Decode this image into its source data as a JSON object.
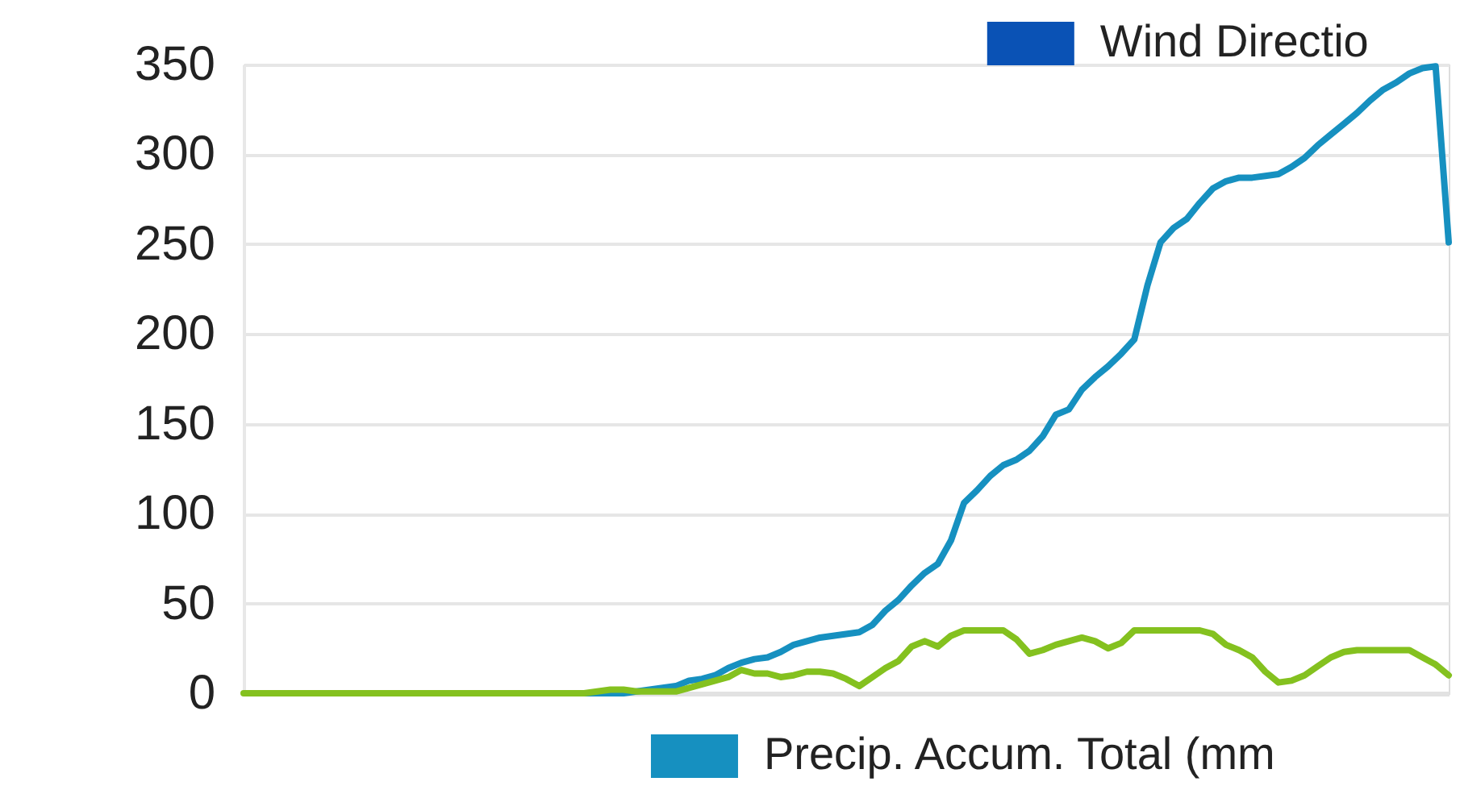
{
  "chart_data": {
    "type": "line",
    "legend": "bottom",
    "grid": "y",
    "tick_labels": "y",
    "line_style": "solid",
    "categories": [
      null,
      null,
      null,
      null,
      null,
      null,
      null,
      null,
      null,
      null,
      null,
      null,
      null,
      null,
      null,
      null,
      null,
      null,
      null,
      null,
      null,
      null,
      null,
      null,
      null,
      null,
      null,
      null,
      null,
      null,
      null,
      null,
      null,
      null,
      null,
      null,
      null,
      null,
      null,
      null,
      null,
      null,
      null,
      null,
      null,
      null,
      null,
      null,
      null,
      null,
      null,
      null,
      null,
      null,
      null,
      null,
      null,
      null,
      null,
      null,
      null,
      null,
      null,
      null,
      null,
      null,
      null,
      null,
      null,
      null,
      null,
      null,
      null,
      null,
      null,
      null,
      null,
      null,
      null,
      null,
      null,
      null,
      null,
      null,
      null,
      null,
      null,
      null,
      null,
      null,
      null,
      null,
      null
    ],
    "ylim": [
      0,
      350
    ],
    "yticks": [
      0,
      50,
      100,
      150,
      200,
      250,
      300,
      350
    ],
    "series": [
      {
        "name": "Wind Directio",
        "color": "#0a52b5",
        "values": [
          null,
          null,
          null,
          null,
          null,
          null,
          null,
          null,
          null,
          null,
          null,
          null,
          null,
          null,
          null,
          null,
          null,
          null,
          null,
          null,
          null,
          null,
          null,
          null,
          null,
          null,
          null,
          null,
          null,
          null,
          null,
          null,
          null,
          null,
          null,
          null,
          null,
          null,
          null,
          null,
          null,
          null,
          null,
          null,
          null,
          null,
          null,
          null,
          null,
          null,
          null,
          null,
          null,
          null,
          null,
          null,
          null,
          null,
          null,
          null,
          null,
          null,
          null,
          null,
          null,
          null,
          null,
          null,
          null,
          null,
          null,
          null,
          null,
          null,
          null,
          null,
          null,
          null,
          null,
          null,
          null,
          null,
          null,
          null,
          null,
          null,
          null,
          null,
          null,
          null,
          null,
          null,
          null
        ]
      },
      {
        "name": "Precip. Accum. Total (mm",
        "color": "#1690c0",
        "values": [
          null,
          null,
          null,
          null,
          null,
          null,
          null,
          null,
          null,
          null,
          null,
          null,
          null,
          null,
          null,
          null,
          null,
          null,
          null,
          null,
          null,
          null,
          null,
          null,
          null,
          0,
          0,
          0,
          0,
          0,
          1,
          2,
          3,
          4,
          7,
          8,
          10,
          14,
          17,
          19,
          20,
          23,
          27,
          29,
          31,
          32,
          33,
          34,
          38,
          46,
          52,
          60,
          67,
          72,
          85,
          106,
          113,
          121,
          127,
          130,
          135,
          143,
          155,
          158,
          169,
          176,
          182,
          189,
          197,
          227,
          251,
          259,
          264,
          273,
          281,
          285,
          287,
          287,
          288,
          289,
          293,
          298,
          305,
          311,
          317,
          323,
          330,
          336,
          340,
          345,
          348,
          349,
          251
        ]
      },
      {
        "color": "#84c11f",
        "values": [
          0,
          0,
          0,
          0,
          0,
          0,
          0,
          0,
          0,
          0,
          0,
          0,
          0,
          0,
          0,
          0,
          0,
          0,
          0,
          0,
          0,
          0,
          0,
          0,
          0,
          0,
          0,
          1,
          2,
          2,
          1,
          1,
          1,
          1,
          3,
          5,
          7,
          9,
          13,
          11,
          11,
          9,
          10,
          12,
          12,
          11,
          8,
          4,
          9,
          14,
          18,
          26,
          29,
          26,
          32,
          35,
          35,
          35,
          35,
          30,
          22,
          24,
          27,
          29,
          31,
          29,
          25,
          28,
          35,
          35,
          35,
          35,
          35,
          35,
          33,
          27,
          24,
          20,
          12,
          6,
          7,
          10,
          15,
          20,
          23,
          24,
          24,
          24,
          24,
          24,
          20,
          16,
          10
        ]
      }
    ]
  }
}
